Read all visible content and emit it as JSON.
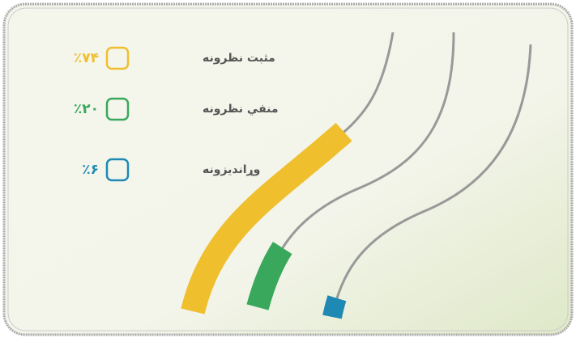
{
  "chart_data": {
    "type": "ribbon",
    "categories": [
      "مثبت نظرونه",
      "منفي نظرونه",
      "وړاندیزونه"
    ],
    "values": [
      74,
      20,
      6
    ],
    "value_labels": [
      "٪۷۴",
      "٪۲۰",
      "٪۶"
    ],
    "colors": [
      "#efbf2e",
      "#3aa85c",
      "#1e8ab4"
    ]
  }
}
